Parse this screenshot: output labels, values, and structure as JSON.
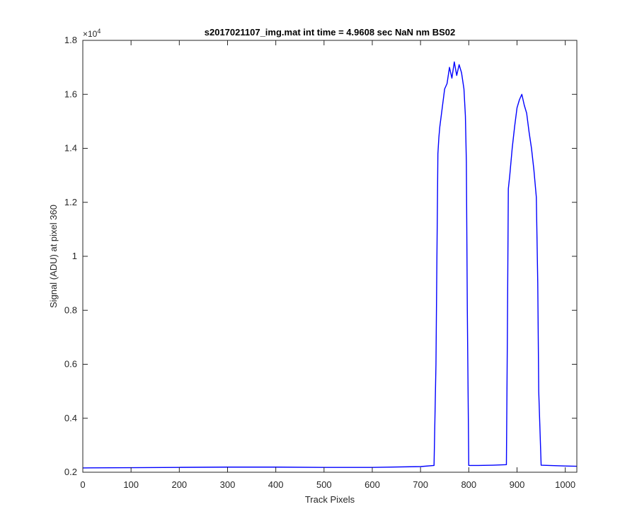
{
  "chart_data": {
    "type": "line",
    "title": "s2017021107_img.mat int time = 4.9608 sec  NaN nm BS02",
    "xlabel": "Track Pixels",
    "ylabel": "Signal (ADU) at pixel 360",
    "xlim": [
      0,
      1024
    ],
    "ylim": [
      0.2,
      1.8
    ],
    "y_multiplier": {
      "base": "×10",
      "exponent": "4"
    },
    "x_ticks": [
      0,
      100,
      200,
      300,
      400,
      500,
      600,
      700,
      800,
      900,
      1000
    ],
    "x_tick_labels": [
      "0",
      "100",
      "200",
      "300",
      "400",
      "500",
      "600",
      "700",
      "800",
      "900",
      "1000"
    ],
    "y_ticks": [
      0.2,
      0.4,
      0.6,
      0.8,
      1.0,
      1.2,
      1.4,
      1.6,
      1.8
    ],
    "y_tick_labels": [
      "0.2",
      "0.4",
      "0.6",
      "0.8",
      "1",
      "1.2",
      "1.4",
      "1.6",
      "1.8"
    ],
    "grid": false,
    "legend": "none",
    "series": [
      {
        "color": "#0000ff",
        "x": [
          0,
          100,
          200,
          300,
          400,
          500,
          600,
          700,
          728,
          732,
          734,
          736,
          738,
          740,
          745,
          750,
          755,
          760,
          765,
          770,
          775,
          780,
          785,
          790,
          793,
          795,
          797,
          800,
          820,
          850,
          878,
          880,
          882,
          885,
          890,
          895,
          900,
          905,
          910,
          915,
          920,
          925,
          930,
          935,
          940,
          943,
          945,
          950,
          1000,
          1024
        ],
        "y": [
          0.216,
          0.217,
          0.218,
          0.219,
          0.219,
          0.218,
          0.218,
          0.221,
          0.225,
          0.6,
          1.0,
          1.38,
          1.44,
          1.48,
          1.55,
          1.62,
          1.64,
          1.7,
          1.66,
          1.72,
          1.67,
          1.71,
          1.68,
          1.62,
          1.52,
          1.35,
          0.8,
          0.225,
          0.225,
          0.226,
          0.228,
          0.7,
          1.25,
          1.3,
          1.4,
          1.48,
          1.55,
          1.58,
          1.6,
          1.56,
          1.53,
          1.46,
          1.4,
          1.32,
          1.22,
          0.9,
          0.5,
          0.226,
          0.223,
          0.222
        ]
      }
    ]
  }
}
